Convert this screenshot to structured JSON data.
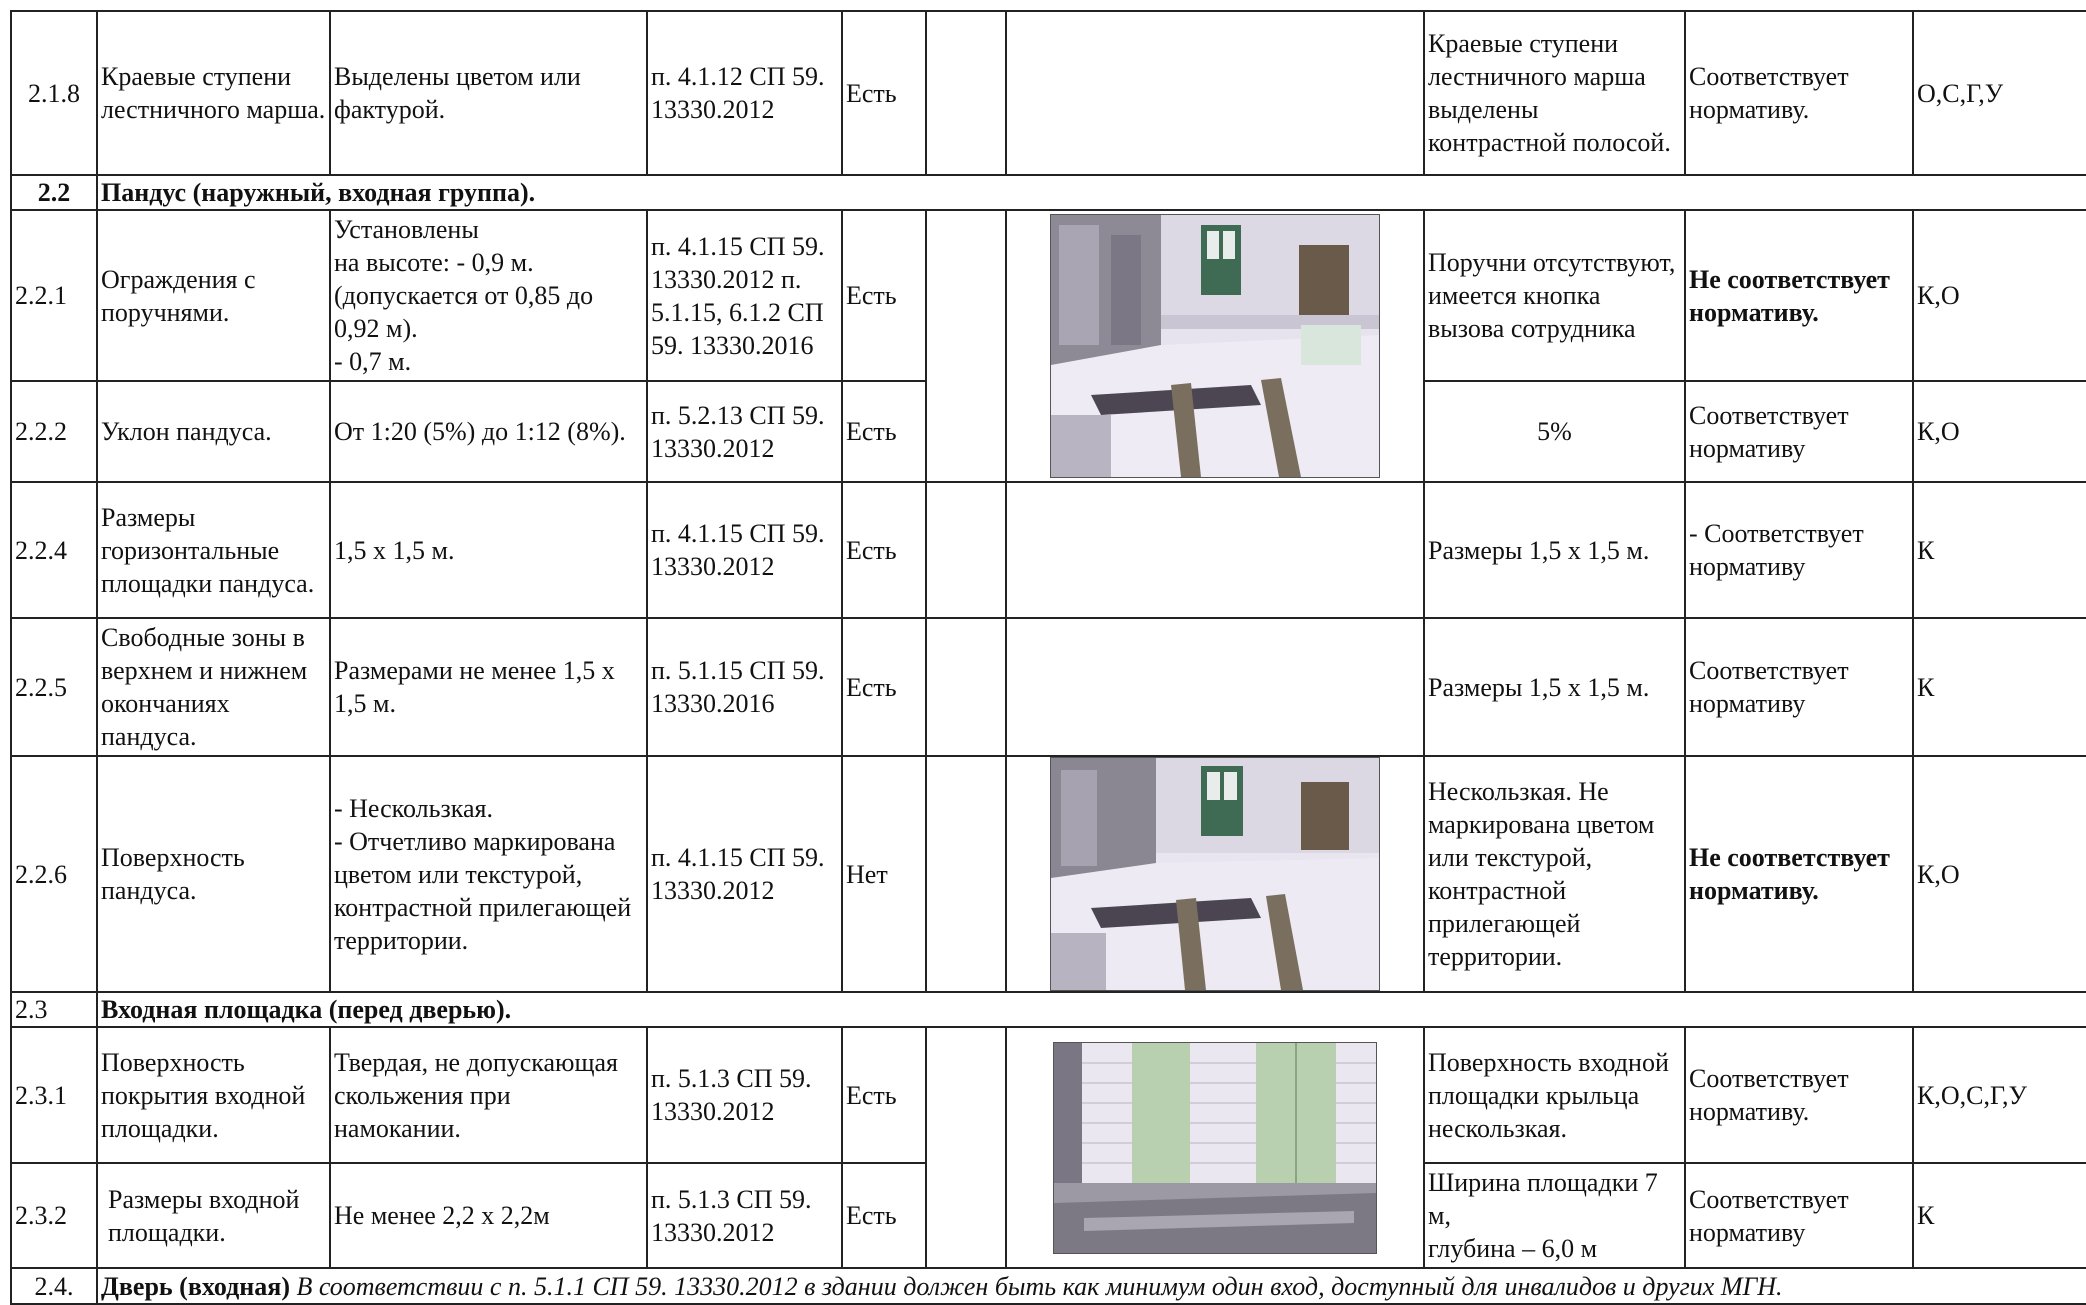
{
  "rows": {
    "r218": {
      "num": "2.1.8",
      "name": "Краевые ступени лестничного марша.",
      "requirement": "Выделены цветом или фактурой.",
      "norm": "п. 4.1.12 СП 59. 13330.2012",
      "presence": "Есть",
      "fact": "Краевые ступени лестничного марша выделены контрастной полосой.",
      "conclusion": "Соответствует нормативу.",
      "categories": "О,С,Г,У"
    },
    "s22": {
      "num": "2.2",
      "title": "Пандус (наружный, входная группа)."
    },
    "r221": {
      "num": "2.2.1",
      "name": "Ограждения с поручнями.",
      "req_lines": [
        "Установлены",
        "на высоте: - 0,9 м.",
        "(допускается от 0,85 до",
        "0,92 м).",
        "- 0,7 м."
      ],
      "norm": "п. 4.1.15 СП 59. 13330.2012 п. 5.1.15, 6.1.2 СП 59. 13330.2016",
      "presence": "Есть",
      "fact": "Поручни отсутствуют, имеется кнопка вызова сотрудника",
      "conclusion": "Не соответствует нормативу.",
      "categories": "К,О"
    },
    "r222": {
      "num": "2.2.2",
      "name": "Уклон пандуса.",
      "requirement": "От 1:20 (5%) до 1:12 (8%).",
      "norm": "п. 5.2.13 СП 59. 13330.2012",
      "presence": "Есть",
      "fact": "5%",
      "conclusion": "Соответствует нормативу",
      "categories": "К,О"
    },
    "r224": {
      "num": "2.2.4",
      "name": "Размеры горизонтальные площадки пандуса.",
      "requirement": "1,5 х 1,5 м.",
      "norm": "п. 4.1.15 СП 59. 13330.2012",
      "presence": "Есть",
      "fact": "Размеры 1,5 х 1,5 м.",
      "conclusion": "- Соответствует нормативу",
      "categories": "К"
    },
    "r225": {
      "num": "2.2.5",
      "name": "Свободные зоны в верхнем и нижнем окончаниях пандуса.",
      "requirement": "Размерами не менее 1,5 х 1,5 м.",
      "norm": "п. 5.1.15 СП 59. 13330.2016",
      "presence": "Есть",
      "fact": "Размеры 1,5 х 1,5 м.",
      "conclusion": "Соответствует нормативу",
      "categories": "К"
    },
    "r226": {
      "num": "2.2.6",
      "name": "Поверхность пандуса.",
      "req_lines": [
        "- Нескользкая.",
        "- Отчетливо маркирована цветом или текстурой, контрастной прилегающей территории."
      ],
      "norm": "п. 4.1.15 СП 59. 13330.2012",
      "presence": "Нет",
      "fact": "Нескользкая. Не маркирована цветом или текстурой, контрастной прилегающей территории.",
      "conclusion": "Не соответствует нормативу.",
      "categories": "К,О"
    },
    "s23": {
      "num": "2.3",
      "title": "Входная площадка (перед дверью)."
    },
    "r231": {
      "num": "2.3.1",
      "name": "Поверхность покрытия входной площадки.",
      "requirement": "Твердая, не допускающая скольжения при намокании.",
      "norm": "п. 5.1.3 СП 59. 13330.2012",
      "presence": "Есть",
      "fact": "Поверхность входной площадки крыльца нескользкая.",
      "conclusion": "Соответствует нормативу.",
      "categories": "К,О,С,Г,У"
    },
    "r232": {
      "num": "2.3.2",
      "name": "Размеры входной площадки.",
      "requirement": "Не менее 2,2 х 2,2м",
      "norm": "п. 5.1.3 СП 59. 13330.2012",
      "presence": "Есть",
      "fact_lines": [
        "Ширина площадки 7 м,",
        "глубина –  6,0 м"
      ],
      "conclusion": "Соответствует нормативу",
      "categories": "К"
    },
    "s24": {
      "num": "2.4.",
      "title": "Дверь (входная)",
      "note": "В соответствии с п. 5.1.1 СП 59. 13330.2012 в здании должен быть как минимум один вход, доступный для инвалидов и других МГН."
    }
  },
  "photos": {
    "ramp_1": "ramp-photo",
    "ramp_2": "ramp-surface-photo",
    "entrance": "entrance-photo"
  },
  "colors": {
    "snow": "#e8e4f0",
    "wall_gray": "#8e8a95",
    "brick_light": "#ddd9e4",
    "door_brown": "#6a5a4a",
    "door_green": "#b8d0b0",
    "window_green": "#3f6b55"
  }
}
